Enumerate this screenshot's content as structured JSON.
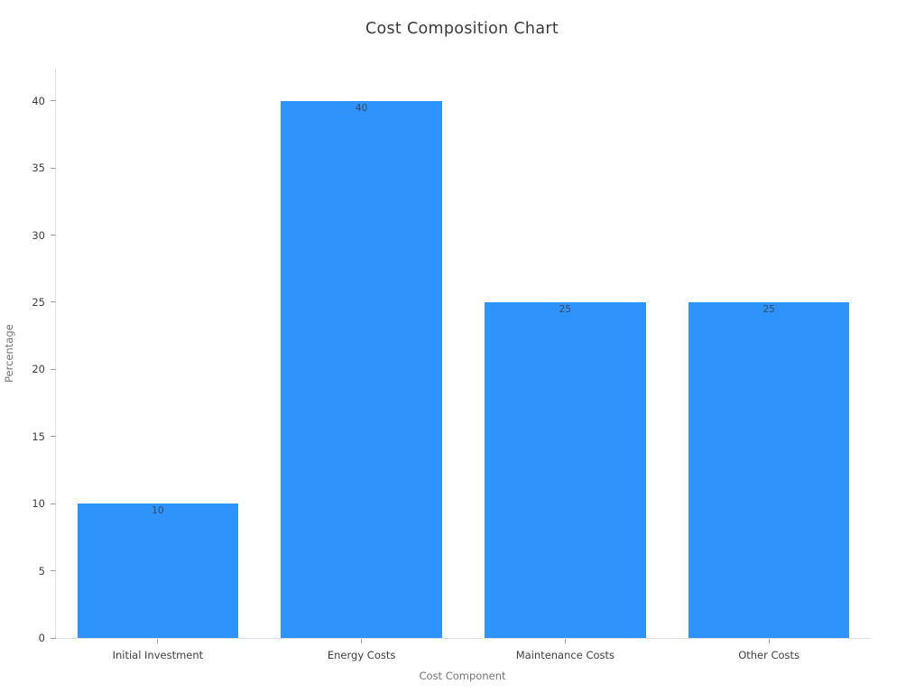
{
  "chart_data": {
    "type": "bar",
    "title": "Cost Composition Chart",
    "xlabel": "Cost Component",
    "ylabel": "Percentage",
    "categories": [
      "Initial Investment",
      "Energy Costs",
      "Maintenance Costs",
      "Other Costs"
    ],
    "values": [
      10,
      40,
      25,
      25
    ],
    "value_labels": [
      "10",
      "40",
      "25",
      "25"
    ],
    "ylim": [
      0,
      42.4
    ],
    "yticks": [
      0,
      5,
      10,
      15,
      20,
      25,
      30,
      35,
      40
    ],
    "grid": false,
    "legend_position": "none",
    "bar_width_ratio": 0.79,
    "colors": {
      "bar_fill": "#2e93fa",
      "bar_value_label": "#3a4a5a",
      "axis_line": "#e0e0e0",
      "tick_mark": "#9e9e9e",
      "tick_label": "#3e3e3e",
      "axis_title": "#757575",
      "chart_title": "#3a3a3a",
      "background": "#ffffff"
    }
  }
}
